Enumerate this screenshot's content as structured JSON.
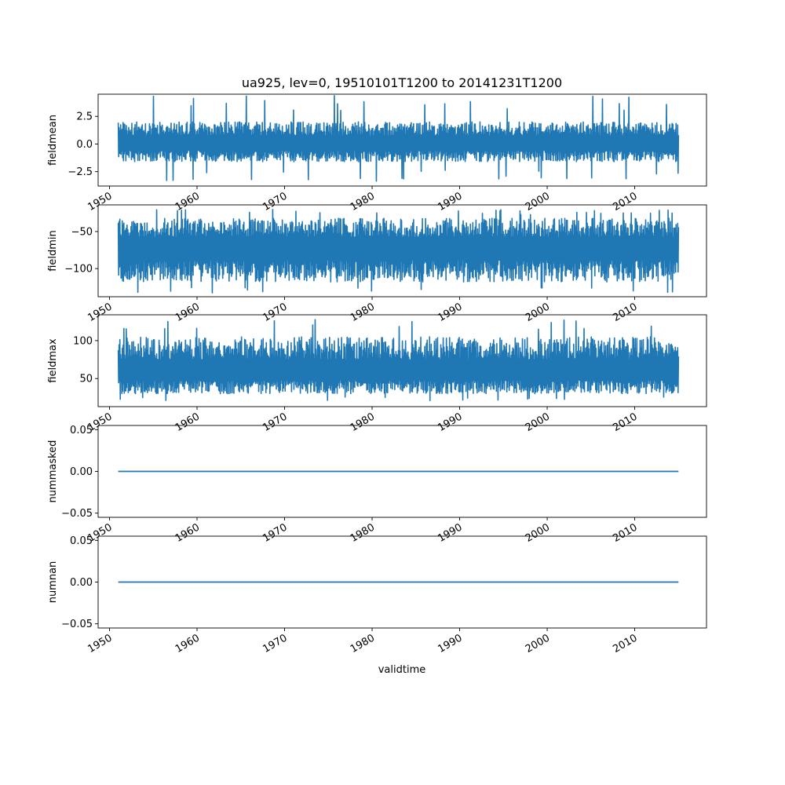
{
  "figure": {
    "title": "ua925, lev=0, 19510101T1200 to 20141231T1200",
    "xlabel": "validtime"
  },
  "colors": {
    "series": "#1f77b4",
    "axes": "#000000"
  },
  "chart_data": [
    {
      "type": "line",
      "ylabel": "fieldmean",
      "x_range": [
        1951.0,
        2015.0
      ],
      "xlim": [
        1948.7,
        2018.2
      ],
      "xticks": [
        1950,
        1960,
        1970,
        1980,
        1990,
        2000,
        2010
      ],
      "ylim": [
        -3.8,
        4.5
      ],
      "yticks": [
        -2.5,
        0.0,
        2.5
      ],
      "ytick_labels": [
        "−2.5",
        "0.0",
        "2.5"
      ],
      "y_center": 0.0,
      "y_low_typical": -1.6,
      "y_high_typical": 2.0,
      "y_min": -3.4,
      "y_max": 4.4,
      "grid": false
    },
    {
      "type": "line",
      "ylabel": "fieldmin",
      "x_range": [
        1951.0,
        2015.0
      ],
      "xlim": [
        1948.7,
        2018.2
      ],
      "xticks": [
        1950,
        1960,
        1970,
        1980,
        1990,
        2000,
        2010
      ],
      "ylim": [
        -138,
        -14
      ],
      "yticks": [
        -100,
        -50
      ],
      "ytick_labels": [
        "−100",
        "−50"
      ],
      "y_center": -72,
      "y_low_typical": -118,
      "y_high_typical": -32,
      "y_min": -133,
      "y_max": -20,
      "grid": false
    },
    {
      "type": "line",
      "ylabel": "fieldmax",
      "x_range": [
        1951.0,
        2015.0
      ],
      "xlim": [
        1948.7,
        2018.2
      ],
      "xticks": [
        1950,
        1960,
        1970,
        1980,
        1990,
        2000,
        2010
      ],
      "ylim": [
        13,
        134
      ],
      "yticks": [
        50,
        100
      ],
      "ytick_labels": [
        "50",
        "100"
      ],
      "y_center": 58,
      "y_low_typical": 30,
      "y_high_typical": 105,
      "y_min": 19,
      "y_max": 128,
      "grid": false
    },
    {
      "type": "line",
      "ylabel": "nummasked",
      "x_range": [
        1951.0,
        2015.0
      ],
      "xlim": [
        1948.7,
        2018.2
      ],
      "xticks": [
        1950,
        1960,
        1970,
        1980,
        1990,
        2000,
        2010
      ],
      "ylim": [
        -0.055,
        0.055
      ],
      "yticks": [
        -0.05,
        0.0,
        0.05
      ],
      "ytick_labels": [
        "−0.05",
        "0.00",
        "0.05"
      ],
      "constant": 0.0,
      "grid": false
    },
    {
      "type": "line",
      "ylabel": "numnan",
      "x_range": [
        1951.0,
        2015.0
      ],
      "xlim": [
        1948.7,
        2018.2
      ],
      "xticks": [
        1950,
        1960,
        1970,
        1980,
        1990,
        2000,
        2010
      ],
      "ylim": [
        -0.055,
        0.055
      ],
      "yticks": [
        -0.05,
        0.0,
        0.05
      ],
      "ytick_labels": [
        "−0.05",
        "0.00",
        "0.05"
      ],
      "constant": 0.0,
      "grid": false
    }
  ]
}
